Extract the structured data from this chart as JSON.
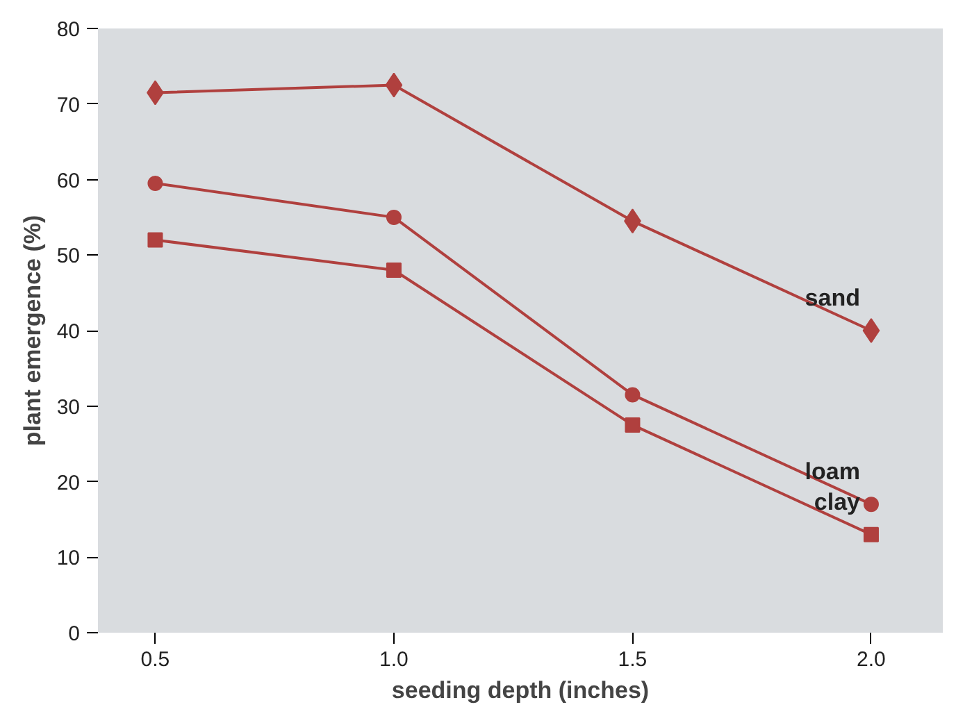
{
  "chart_data": {
    "type": "line",
    "xlabel": "seeding depth (inches)",
    "ylabel": "plant emergence (%)",
    "x": [
      0.5,
      1.0,
      1.5,
      2.0
    ],
    "series": [
      {
        "name": "sand",
        "color": "#b0403e",
        "values": [
          71.5,
          72.5,
          54.5,
          40
        ],
        "marker": "diamond"
      },
      {
        "name": "loam",
        "color": "#b0403e",
        "values": [
          59.5,
          55,
          31.5,
          17
        ],
        "marker": "circle"
      },
      {
        "name": "clay",
        "color": "#b0403e",
        "values": [
          52,
          48,
          27.5,
          13
        ],
        "marker": "square"
      }
    ],
    "xlim": [
      0.38,
      2.15
    ],
    "ylim": [
      0,
      80
    ],
    "xticks": [
      {
        "value": 0.5,
        "label": "0.5"
      },
      {
        "value": 1.0,
        "label": "1.0"
      },
      {
        "value": 1.5,
        "label": "1.5"
      },
      {
        "value": 2.0,
        "label": "2.0"
      }
    ],
    "yticks": [
      0,
      10,
      20,
      30,
      40,
      50,
      60,
      70,
      80
    ],
    "line_style": "solid"
  }
}
